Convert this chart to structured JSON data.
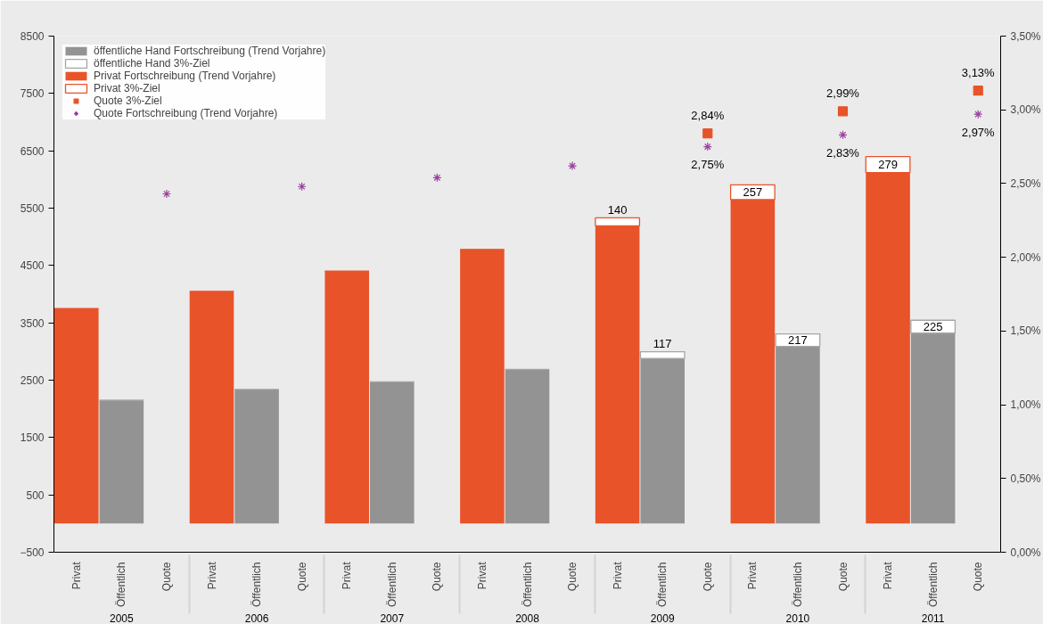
{
  "chart_data": {
    "type": "bar",
    "stacked": true,
    "categories": [
      "Privat",
      "Öffentlich",
      "Quote",
      "Privat",
      "Öffentlich",
      "Quote",
      "Privat",
      "Öffentlich",
      "Quote",
      "Privat",
      "Öffentlich",
      "Quote",
      "Privat",
      "Öffentlich",
      "Quote",
      "Privat",
      "Öffentlich",
      "Quote",
      "Privat",
      "Öffentlich",
      "Quote"
    ],
    "annotations": [
      "2005",
      "2006",
      "2007",
      "2008",
      "2009",
      "2010",
      "2011"
    ],
    "series": [
      {
        "name": "öffentliche Hand Fortschreibung (Trend Vorjahre)",
        "color": "#939393",
        "values": [
          null,
          2150,
          null,
          null,
          2340,
          null,
          null,
          2470,
          null,
          null,
          2690,
          null,
          null,
          2880,
          null,
          null,
          3090,
          null,
          null,
          3320,
          null
        ]
      },
      {
        "name": "öffentliche Hand 3%-Ziel",
        "color": "#a6a6a6",
        "line_style": "solid",
        "values": [
          null,
          0,
          null,
          null,
          0,
          null,
          null,
          0,
          null,
          null,
          0,
          null,
          null,
          117,
          null,
          null,
          217,
          null,
          null,
          225,
          null
        ],
        "value_labels": [
          null,
          null,
          null,
          null,
          null,
          null,
          null,
          null,
          null,
          null,
          null,
          null,
          null,
          "117",
          null,
          null,
          "217",
          null,
          null,
          "225",
          null
        ]
      },
      {
        "name": "Privat Fortschreibung (Trend Vorjahre)",
        "color": "#e8532a",
        "values": [
          3750,
          null,
          null,
          4050,
          null,
          null,
          4400,
          null,
          null,
          4780,
          null,
          null,
          5190,
          null,
          null,
          5650,
          null,
          null,
          6120,
          null,
          null
        ]
      },
      {
        "name": "Privat 3%-Ziel",
        "color": "#e8532a",
        "line_style": "solid",
        "values": [
          0,
          null,
          null,
          0,
          null,
          null,
          0,
          null,
          null,
          0,
          null,
          null,
          140,
          null,
          null,
          257,
          null,
          null,
          279,
          null,
          null
        ],
        "value_labels": [
          null,
          null,
          null,
          null,
          null,
          null,
          null,
          null,
          null,
          null,
          null,
          null,
          "140",
          null,
          null,
          "257",
          null,
          null,
          "279",
          null,
          null
        ]
      },
      {
        "name": "Quote 3%-Ziel",
        "type": "scatter",
        "axis": "y2",
        "marker": "square",
        "color": "#e8532a",
        "values": [
          null,
          null,
          null,
          null,
          null,
          null,
          null,
          null,
          null,
          null,
          null,
          null,
          null,
          null,
          2.84,
          null,
          null,
          2.99,
          null,
          null,
          3.13
        ],
        "value_labels": [
          null,
          null,
          null,
          null,
          null,
          null,
          null,
          null,
          null,
          null,
          null,
          null,
          null,
          null,
          "2,84%",
          null,
          null,
          "2,99%",
          null,
          null,
          "3,13%"
        ]
      },
      {
        "name": "Quote Fortschreibung (Trend Vorjahre)",
        "type": "scatter",
        "axis": "y2",
        "marker": "cross",
        "color": "#9b3fa0",
        "values": [
          null,
          null,
          2.43,
          null,
          null,
          2.48,
          null,
          null,
          2.54,
          null,
          null,
          2.62,
          null,
          null,
          2.75,
          null,
          null,
          2.83,
          null,
          null,
          2.97
        ],
        "value_labels": [
          null,
          null,
          null,
          null,
          null,
          null,
          null,
          null,
          null,
          null,
          null,
          null,
          null,
          null,
          "2,75%",
          null,
          null,
          "2,83%",
          null,
          null,
          "2,97%"
        ]
      }
    ],
    "ylim": [
      -500,
      8500
    ],
    "yticks": [
      -500,
      500,
      1500,
      2500,
      3500,
      4500,
      5500,
      6500,
      7500,
      8500
    ],
    "y2lim": [
      0,
      3.5
    ],
    "y2ticks": [
      {
        "value": 0,
        "label": "0,00%"
      },
      {
        "value": 0.5,
        "label": "0,50%"
      },
      {
        "value": 1,
        "label": "1,00%"
      },
      {
        "value": 1.5,
        "label": "1,50%"
      },
      {
        "value": 2,
        "label": "2,00%"
      },
      {
        "value": 2.5,
        "label": "2,50%"
      },
      {
        "value": 3,
        "label": "3,00%"
      },
      {
        "value": 3.5,
        "label": "3,50%"
      }
    ],
    "grid": false,
    "legend": "top left"
  }
}
